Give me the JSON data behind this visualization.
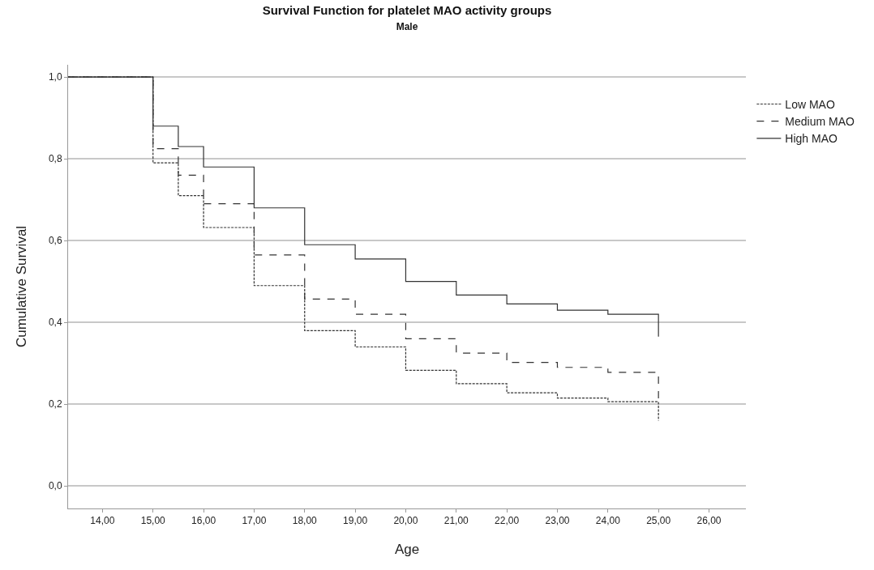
{
  "chart_data": {
    "type": "step",
    "title": "Survival Function for platelet MAO activity groups",
    "subtitle": "Male",
    "xlabel": "Age",
    "ylabel": "Cumulative Survival",
    "x": [
      13.32,
      15,
      15.5,
      16,
      17,
      18,
      19,
      20,
      21,
      22,
      23,
      24,
      25
    ],
    "series": [
      {
        "name": "Low MAO",
        "color": "#333333",
        "line_style": "dotted",
        "values": [
          1.0,
          0.79,
          0.71,
          0.632,
          0.49,
          0.38,
          0.34,
          0.283,
          0.25,
          0.228,
          0.215,
          0.206,
          0.16
        ]
      },
      {
        "name": "Medium MAO",
        "color": "#333333",
        "line_style": "dashed",
        "values": [
          1.0,
          0.825,
          0.76,
          0.69,
          0.565,
          0.457,
          0.42,
          0.36,
          0.325,
          0.302,
          0.29,
          0.278,
          0.21
        ]
      },
      {
        "name": "High MAO",
        "color": "#333333",
        "line_style": "solid",
        "values": [
          1.0,
          0.88,
          0.83,
          0.78,
          0.68,
          0.59,
          0.555,
          0.5,
          0.467,
          0.445,
          0.43,
          0.42,
          0.365
        ]
      }
    ],
    "xlim": [
      13.32,
      26.73
    ],
    "ylim": [
      -0.055,
      1.03
    ],
    "xticks": [
      {
        "value": 14,
        "label": "14,00"
      },
      {
        "value": 15,
        "label": "15,00"
      },
      {
        "value": 16,
        "label": "16,00"
      },
      {
        "value": 17,
        "label": "17,00"
      },
      {
        "value": 18,
        "label": "18,00"
      },
      {
        "value": 19,
        "label": "19,00"
      },
      {
        "value": 20,
        "label": "20,00"
      },
      {
        "value": 21,
        "label": "21,00"
      },
      {
        "value": 22,
        "label": "22,00"
      },
      {
        "value": 23,
        "label": "23,00"
      },
      {
        "value": 24,
        "label": "24,00"
      },
      {
        "value": 25,
        "label": "25,00"
      },
      {
        "value": 26,
        "label": "26,00"
      }
    ],
    "yticks": [
      {
        "value": 0,
        "label": "0,0"
      },
      {
        "value": 0.2,
        "label": "0,2"
      },
      {
        "value": 0.4,
        "label": "0,4"
      },
      {
        "value": 0.6,
        "label": "0,6"
      },
      {
        "value": 0.8,
        "label": "0,8"
      },
      {
        "value": 1,
        "label": "1,0"
      }
    ],
    "grid": "y",
    "legend": "top right",
    "marker": "none"
  }
}
